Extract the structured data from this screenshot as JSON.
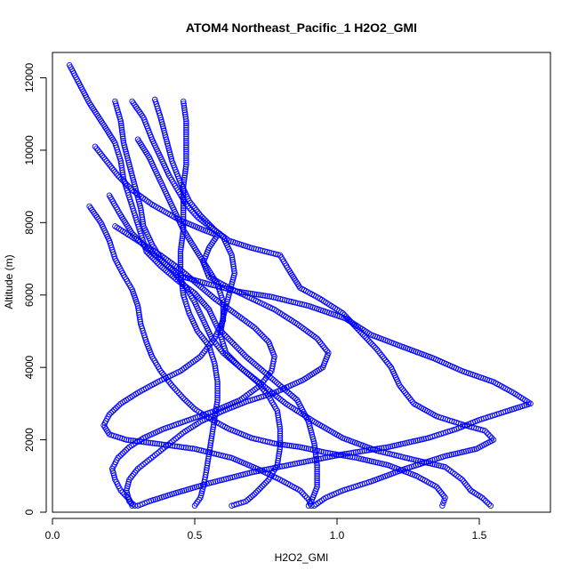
{
  "chart_data": {
    "type": "scatter",
    "title": "ATOM4 Northeast_Pacific_1 H2O2_GMI",
    "xlabel": "H2O2_GMI",
    "ylabel": "Altitude (m)",
    "xlim": [
      0,
      1.75
    ],
    "ylim": [
      0,
      12700
    ],
    "x_ticks": [
      0.0,
      0.5,
      1.0,
      1.5
    ],
    "x_tick_labels": [
      "0.0",
      "0.5",
      "1.0",
      "1.5"
    ],
    "y_ticks": [
      0,
      2000,
      4000,
      6000,
      8000,
      10000,
      12000
    ],
    "y_tick_labels": [
      "0",
      "2000",
      "4000",
      "6000",
      "8000",
      "10000",
      "12000"
    ],
    "marker": "open-circle",
    "point_color": "#0000ff",
    "grid": false,
    "series": [
      {
        "points": [
          [
            0.06,
            12350
          ],
          [
            0.09,
            11900
          ],
          [
            0.13,
            11300
          ],
          [
            0.18,
            10700
          ],
          [
            0.22,
            10200
          ],
          [
            0.24,
            9700
          ],
          [
            0.25,
            9200
          ],
          [
            0.27,
            8700
          ],
          [
            0.29,
            8200
          ],
          [
            0.31,
            7700
          ],
          [
            0.33,
            7200
          ],
          [
            0.38,
            6800
          ],
          [
            0.44,
            6400
          ],
          [
            0.5,
            6050
          ],
          [
            0.55,
            5600
          ],
          [
            0.58,
            5100
          ],
          [
            0.63,
            4700
          ],
          [
            0.68,
            4300
          ],
          [
            0.74,
            3900
          ],
          [
            0.8,
            3500
          ],
          [
            0.86,
            3100
          ],
          [
            0.9,
            2500
          ],
          [
            0.92,
            1900
          ],
          [
            0.93,
            1300
          ],
          [
            0.93,
            700
          ],
          [
            0.91,
            300
          ],
          [
            0.9,
            180
          ]
        ]
      },
      {
        "points": [
          [
            0.22,
            11350
          ],
          [
            0.24,
            10800
          ],
          [
            0.25,
            10200
          ],
          [
            0.27,
            9600
          ],
          [
            0.29,
            9000
          ],
          [
            0.31,
            8400
          ],
          [
            0.32,
            7900
          ],
          [
            0.35,
            7400
          ],
          [
            0.38,
            7000
          ],
          [
            0.43,
            6600
          ],
          [
            0.47,
            6200
          ],
          [
            0.5,
            5800
          ],
          [
            0.53,
            5300
          ],
          [
            0.56,
            4800
          ],
          [
            0.6,
            4400
          ],
          [
            0.66,
            4000
          ],
          [
            0.74,
            3500
          ],
          [
            0.82,
            3000
          ],
          [
            0.92,
            2500
          ],
          [
            1.02,
            2050
          ],
          [
            1.14,
            1700
          ],
          [
            1.27,
            1450
          ],
          [
            1.38,
            1250
          ],
          [
            1.44,
            900
          ],
          [
            1.47,
            600
          ],
          [
            1.51,
            400
          ],
          [
            1.54,
            180
          ]
        ]
      },
      {
        "points": [
          [
            0.28,
            11350
          ],
          [
            0.32,
            10900
          ],
          [
            0.35,
            10300
          ],
          [
            0.38,
            9800
          ],
          [
            0.41,
            9300
          ],
          [
            0.44,
            8900
          ],
          [
            0.47,
            8500
          ],
          [
            0.51,
            8150
          ],
          [
            0.55,
            7900
          ],
          [
            0.6,
            7600
          ],
          [
            0.63,
            7100
          ],
          [
            0.64,
            6600
          ],
          [
            0.62,
            6000
          ],
          [
            0.6,
            5400
          ],
          [
            0.59,
            4900
          ],
          [
            0.61,
            4400
          ],
          [
            0.66,
            4000
          ],
          [
            0.72,
            3600
          ],
          [
            0.76,
            3200
          ],
          [
            0.79,
            2800
          ],
          [
            0.8,
            2300
          ],
          [
            0.8,
            1800
          ],
          [
            0.79,
            1300
          ],
          [
            0.76,
            900
          ],
          [
            0.71,
            500
          ],
          [
            0.68,
            300
          ],
          [
            0.63,
            180
          ]
        ]
      },
      {
        "points": [
          [
            0.46,
            11350
          ],
          [
            0.47,
            10800
          ],
          [
            0.47,
            10200
          ],
          [
            0.47,
            9600
          ],
          [
            0.46,
            9000
          ],
          [
            0.46,
            8400
          ],
          [
            0.46,
            7800
          ],
          [
            0.45,
            7200
          ],
          [
            0.45,
            6600
          ],
          [
            0.46,
            6000
          ],
          [
            0.48,
            5500
          ],
          [
            0.51,
            5000
          ],
          [
            0.55,
            4600
          ],
          [
            0.57,
            4100
          ],
          [
            0.58,
            3600
          ],
          [
            0.58,
            3100
          ],
          [
            0.57,
            2600
          ],
          [
            0.56,
            2100
          ],
          [
            0.55,
            1600
          ],
          [
            0.54,
            1100
          ],
          [
            0.53,
            700
          ],
          [
            0.52,
            400
          ],
          [
            0.5,
            180
          ]
        ]
      },
      {
        "points": [
          [
            0.13,
            8450
          ],
          [
            0.17,
            8000
          ],
          [
            0.2,
            7500
          ],
          [
            0.22,
            7000
          ],
          [
            0.25,
            6550
          ],
          [
            0.28,
            6150
          ],
          [
            0.3,
            5700
          ],
          [
            0.31,
            5200
          ],
          [
            0.33,
            4700
          ],
          [
            0.35,
            4300
          ],
          [
            0.38,
            3900
          ],
          [
            0.42,
            3500
          ],
          [
            0.46,
            3150
          ],
          [
            0.5,
            2850
          ],
          [
            0.55,
            2600
          ],
          [
            0.62,
            2300
          ],
          [
            0.7,
            2050
          ],
          [
            0.78,
            1900
          ],
          [
            0.87,
            1800
          ],
          [
            0.96,
            1650
          ],
          [
            1.07,
            1500
          ],
          [
            1.18,
            1300
          ],
          [
            1.28,
            1000
          ],
          [
            1.35,
            700
          ],
          [
            1.38,
            400
          ],
          [
            1.37,
            180
          ]
        ]
      },
      {
        "points": [
          [
            0.2,
            8750
          ],
          [
            0.24,
            8200
          ],
          [
            0.28,
            7700
          ],
          [
            0.33,
            7300
          ],
          [
            0.39,
            6900
          ],
          [
            0.46,
            6500
          ],
          [
            0.55,
            6300
          ],
          [
            0.65,
            6100
          ],
          [
            0.77,
            5950
          ],
          [
            0.9,
            5700
          ],
          [
            1.03,
            5350
          ],
          [
            1.12,
            4900
          ],
          [
            1.22,
            4600
          ],
          [
            1.34,
            4250
          ],
          [
            1.44,
            3900
          ],
          [
            1.55,
            3600
          ],
          [
            1.62,
            3300
          ],
          [
            1.68,
            3000
          ],
          [
            1.6,
            2800
          ],
          [
            1.5,
            2550
          ],
          [
            1.42,
            2300
          ],
          [
            1.32,
            2050
          ],
          [
            1.18,
            1800
          ],
          [
            1.02,
            1600
          ],
          [
            0.86,
            1350
          ],
          [
            0.7,
            1100
          ],
          [
            0.55,
            800
          ],
          [
            0.42,
            500
          ],
          [
            0.34,
            300
          ],
          [
            0.3,
            180
          ]
        ]
      },
      {
        "points": [
          [
            0.22,
            7900
          ],
          [
            0.3,
            7500
          ],
          [
            0.38,
            7100
          ],
          [
            0.45,
            6700
          ],
          [
            0.51,
            6300
          ],
          [
            0.57,
            5900
          ],
          [
            0.64,
            5500
          ],
          [
            0.71,
            5100
          ],
          [
            0.76,
            4700
          ],
          [
            0.78,
            4300
          ],
          [
            0.77,
            3900
          ],
          [
            0.73,
            3500
          ],
          [
            0.66,
            3100
          ],
          [
            0.57,
            2800
          ],
          [
            0.48,
            2550
          ],
          [
            0.39,
            2300
          ],
          [
            0.32,
            2050
          ],
          [
            0.27,
            1800
          ],
          [
            0.23,
            1500
          ],
          [
            0.21,
            1200
          ],
          [
            0.22,
            900
          ],
          [
            0.24,
            600
          ],
          [
            0.27,
            350
          ],
          [
            0.28,
            180
          ]
        ]
      },
      {
        "points": [
          [
            0.36,
            11400
          ],
          [
            0.38,
            10900
          ],
          [
            0.4,
            10300
          ],
          [
            0.42,
            9700
          ],
          [
            0.45,
            9100
          ],
          [
            0.48,
            8600
          ],
          [
            0.52,
            8200
          ],
          [
            0.57,
            7800
          ],
          [
            0.62,
            7500
          ],
          [
            0.7,
            7300
          ],
          [
            0.8,
            7100
          ],
          [
            0.83,
            6700
          ],
          [
            0.87,
            6200
          ],
          [
            0.94,
            5900
          ],
          [
            1.02,
            5500
          ],
          [
            1.08,
            5000
          ],
          [
            1.14,
            4500
          ],
          [
            1.19,
            4000
          ],
          [
            1.22,
            3500
          ],
          [
            1.27,
            3000
          ],
          [
            1.35,
            2650
          ],
          [
            1.45,
            2400
          ],
          [
            1.52,
            2250
          ],
          [
            1.55,
            2000
          ],
          [
            1.49,
            1750
          ],
          [
            1.38,
            1550
          ],
          [
            1.24,
            1200
          ],
          [
            1.12,
            850
          ],
          [
            1.02,
            600
          ],
          [
            0.96,
            400
          ],
          [
            0.92,
            180
          ]
        ]
      },
      {
        "points": [
          [
            0.3,
            10300
          ],
          [
            0.34,
            9800
          ],
          [
            0.37,
            9300
          ],
          [
            0.4,
            8800
          ],
          [
            0.43,
            8300
          ],
          [
            0.46,
            7800
          ],
          [
            0.5,
            7300
          ],
          [
            0.54,
            6800
          ],
          [
            0.58,
            6300
          ],
          [
            0.6,
            5800
          ],
          [
            0.6,
            5300
          ],
          [
            0.57,
            4800
          ],
          [
            0.52,
            4300
          ],
          [
            0.45,
            3900
          ],
          [
            0.37,
            3600
          ],
          [
            0.3,
            3300
          ],
          [
            0.24,
            3000
          ],
          [
            0.2,
            2700
          ],
          [
            0.18,
            2400
          ],
          [
            0.2,
            2150
          ],
          [
            0.26,
            2000
          ],
          [
            0.36,
            1900
          ],
          [
            0.5,
            1750
          ],
          [
            0.63,
            1500
          ],
          [
            0.72,
            1200
          ],
          [
            0.8,
            900
          ],
          [
            0.87,
            600
          ],
          [
            0.9,
            350
          ],
          [
            0.91,
            180
          ]
        ]
      },
      {
        "points": [
          [
            0.15,
            10100
          ],
          [
            0.19,
            9700
          ],
          [
            0.23,
            9300
          ],
          [
            0.28,
            8900
          ],
          [
            0.35,
            8500
          ],
          [
            0.44,
            8100
          ],
          [
            0.53,
            7800
          ],
          [
            0.58,
            7650
          ],
          [
            0.55,
            7300
          ],
          [
            0.53,
            6900
          ],
          [
            0.55,
            6500
          ],
          [
            0.62,
            6200
          ],
          [
            0.7,
            5900
          ],
          [
            0.78,
            5600
          ],
          [
            0.86,
            5200
          ],
          [
            0.93,
            4800
          ],
          [
            0.97,
            4400
          ],
          [
            0.95,
            4000
          ],
          [
            0.88,
            3650
          ],
          [
            0.78,
            3300
          ],
          [
            0.68,
            3050
          ],
          [
            0.6,
            2800
          ],
          [
            0.52,
            2500
          ],
          [
            0.46,
            2200
          ],
          [
            0.42,
            1950
          ],
          [
            0.38,
            1700
          ],
          [
            0.34,
            1450
          ],
          [
            0.3,
            1200
          ],
          [
            0.27,
            900
          ],
          [
            0.26,
            600
          ],
          [
            0.27,
            300
          ],
          [
            0.29,
            180
          ]
        ]
      }
    ]
  }
}
